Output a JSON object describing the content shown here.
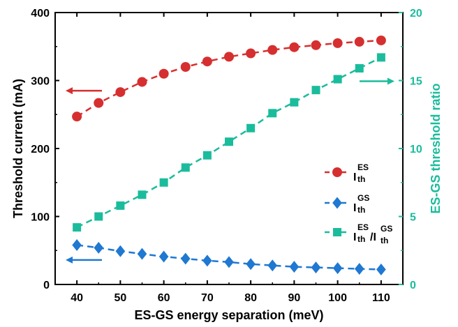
{
  "chart_data": {
    "type": "line",
    "xlabel": "ES-GS energy separation (meV)",
    "ylabel": "Threshold current (mA)",
    "y2label": "ES-GS threshold ratio",
    "xlim": [
      35,
      115
    ],
    "ylim": [
      0,
      400
    ],
    "y2lim": [
      0,
      20
    ],
    "xticks": [
      40,
      50,
      60,
      70,
      80,
      90,
      100,
      110
    ],
    "yticks": [
      0,
      100,
      200,
      300,
      400
    ],
    "y2ticks": [
      0,
      5,
      10,
      15,
      20
    ],
    "x": [
      40,
      45,
      50,
      55,
      60,
      65,
      70,
      75,
      80,
      85,
      90,
      95,
      100,
      105,
      110
    ],
    "series": [
      {
        "name": "I_th^ES",
        "legend_base": "I",
        "legend_sub": "th",
        "legend_sup": "ES",
        "axis": "left",
        "marker": "circle",
        "color": "#d62f2f",
        "values": [
          247,
          267,
          283,
          298,
          310,
          320,
          328,
          335,
          340,
          345,
          349,
          352,
          355,
          357,
          359
        ]
      },
      {
        "name": "I_th^GS",
        "legend_base": "I",
        "legend_sub": "th",
        "legend_sup": "GS",
        "axis": "left",
        "marker": "diamond",
        "color": "#1f78d1",
        "values": [
          58,
          54,
          49,
          45,
          41,
          38,
          35,
          33,
          30,
          28,
          26,
          25,
          24,
          23,
          22
        ]
      },
      {
        "name": "I_th^ES/I_th^GS",
        "legend_base": "I",
        "legend_sub": "th",
        "legend_sup": "ES",
        "legend_base2": "/I",
        "legend_sub2": "th",
        "legend_sup2": "GS",
        "axis": "right",
        "marker": "square",
        "color": "#1abc9c",
        "values": [
          4.2,
          5.0,
          5.8,
          6.6,
          7.5,
          8.6,
          9.5,
          10.5,
          11.5,
          12.6,
          13.4,
          14.3,
          15.1,
          15.9,
          16.7
        ]
      }
    ],
    "legend_position": "center-right",
    "left_axis_color": "#000000",
    "right_axis_color": "#1abc9c"
  }
}
